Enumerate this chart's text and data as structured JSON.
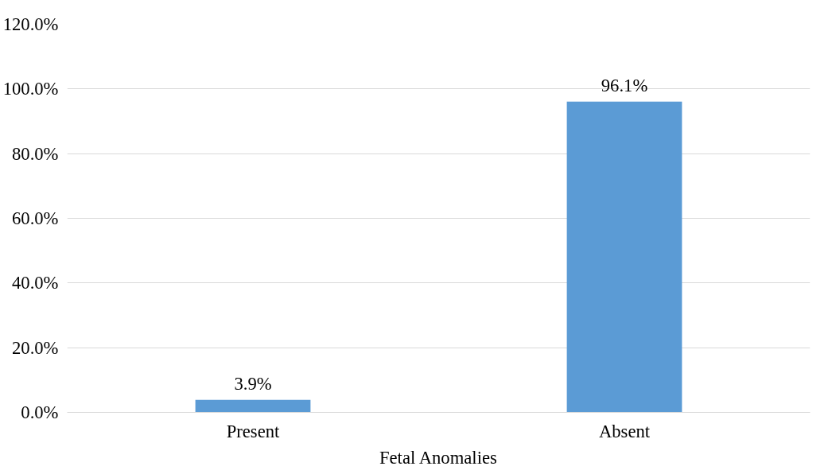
{
  "chart_data": {
    "type": "bar",
    "xlabel": "Fetal Anomalies",
    "categories": [
      "Present",
      "Absent"
    ],
    "values": [
      3.9,
      96.1
    ],
    "value_labels": [
      "3.9%",
      "96.1%"
    ],
    "color": "#5b9bd5",
    "ylim": [
      0,
      120
    ],
    "yticks": [
      {
        "value": 0,
        "label": "0.0%"
      },
      {
        "value": 20,
        "label": "20.0%"
      },
      {
        "value": 40,
        "label": "40.0%"
      },
      {
        "value": 60,
        "label": "60.0%"
      },
      {
        "value": 80,
        "label": "80.0%"
      },
      {
        "value": 100,
        "label": "100.0%"
      },
      {
        "value": 120,
        "label": "120.0%"
      }
    ],
    "grid": "y"
  }
}
